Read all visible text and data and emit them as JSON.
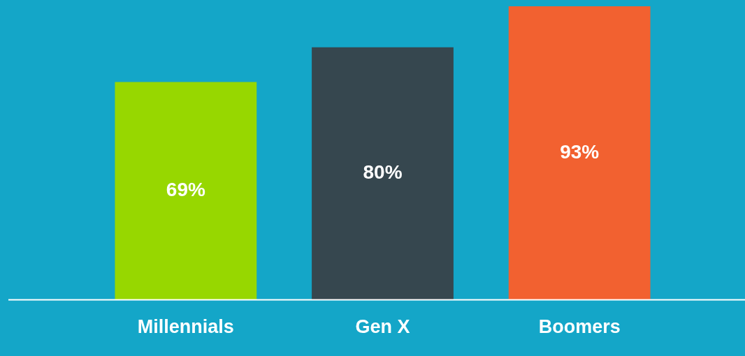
{
  "chart_data": {
    "type": "bar",
    "categories": [
      "Millennials",
      "Gen X",
      "Boomers"
    ],
    "values": [
      69,
      80,
      93
    ],
    "colors": [
      "#97d700",
      "#36474f",
      "#f26130"
    ],
    "value_labels": [
      "69%",
      "80%",
      "93%"
    ],
    "tick_labels": "x"
  }
}
